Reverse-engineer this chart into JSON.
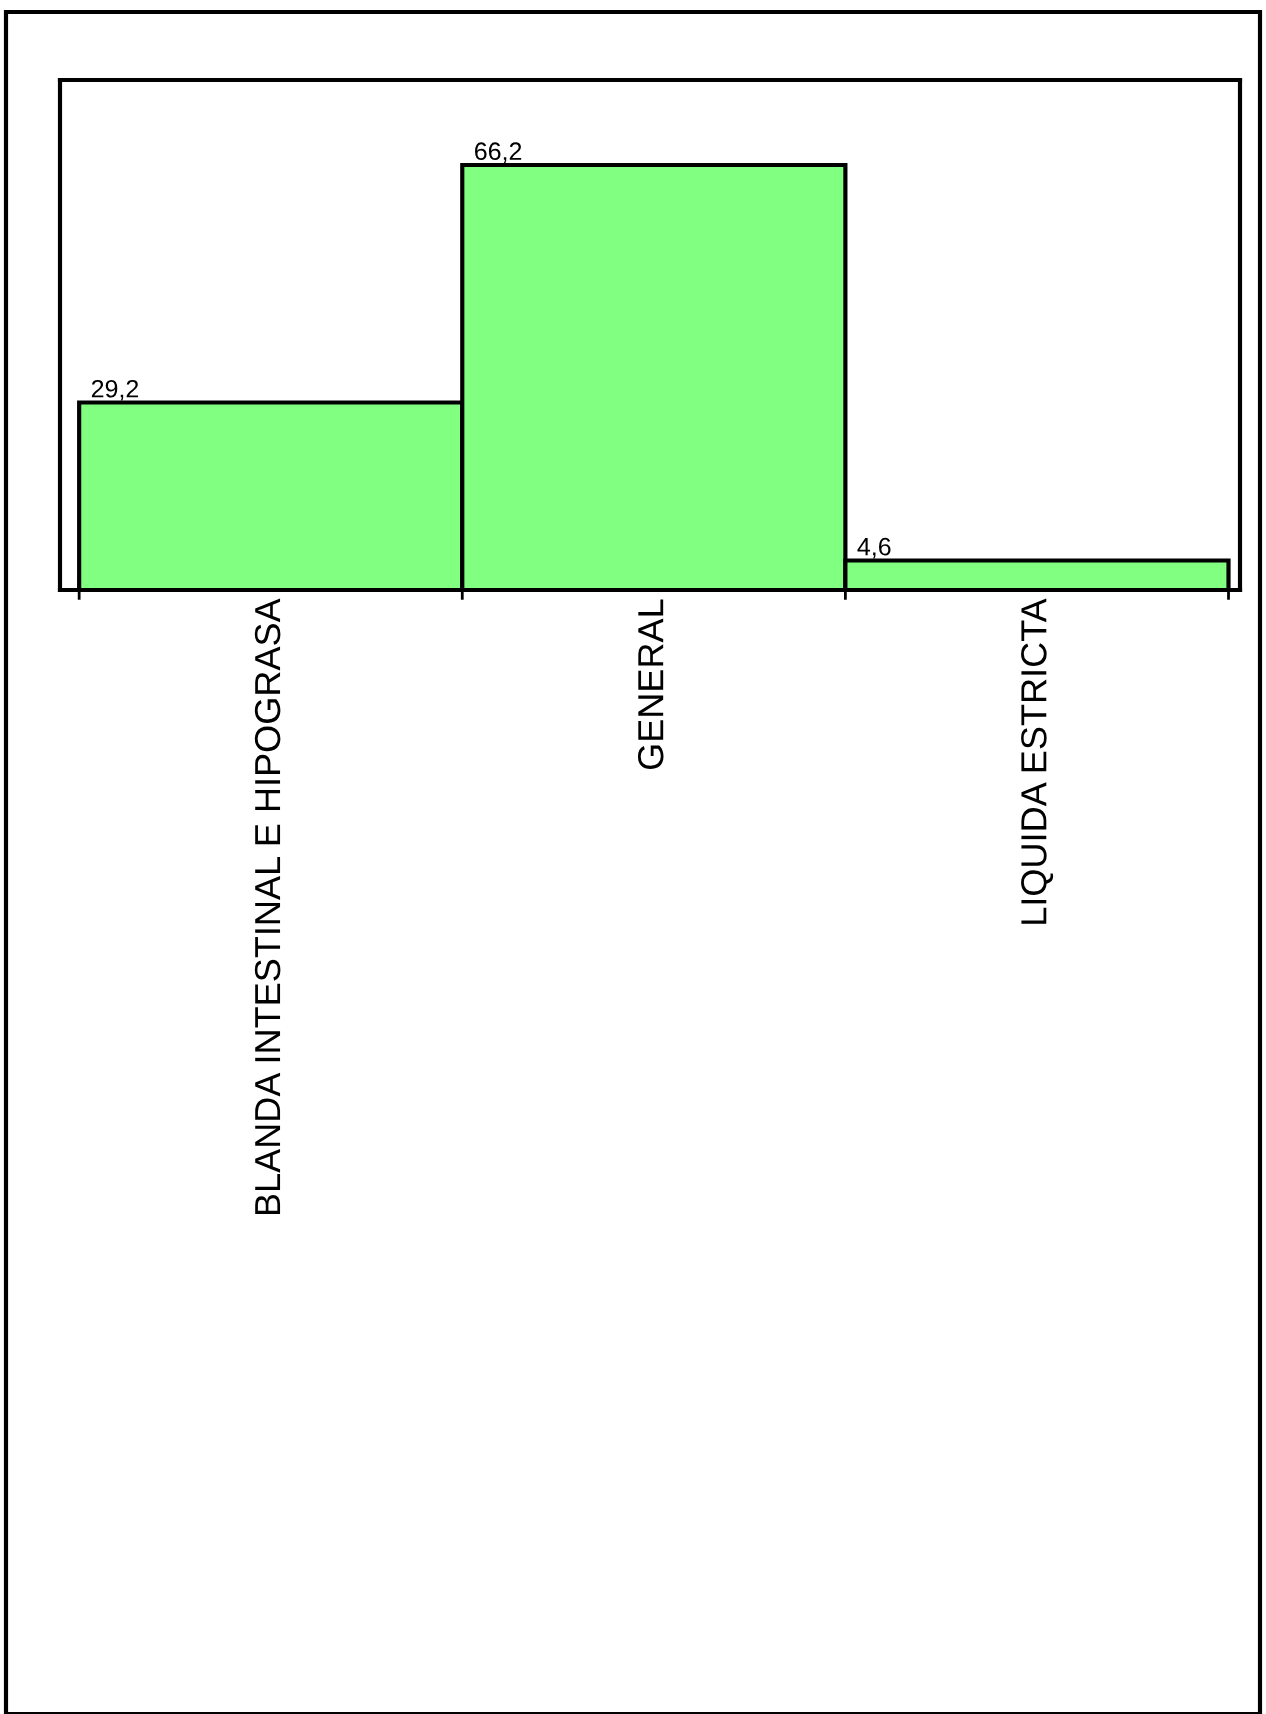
{
  "chart_data": {
    "type": "bar",
    "categories": [
      "BLANDA INTESTINAL E HIPOGRASA",
      "GENERAL",
      "LIQUIDA ESTRICTA"
    ],
    "values": [
      29.2,
      66.2,
      4.6
    ],
    "color": "#80ff80",
    "value_labels": [
      "29,2",
      "66,2",
      "4,6"
    ],
    "grid": false,
    "legend": false
  }
}
